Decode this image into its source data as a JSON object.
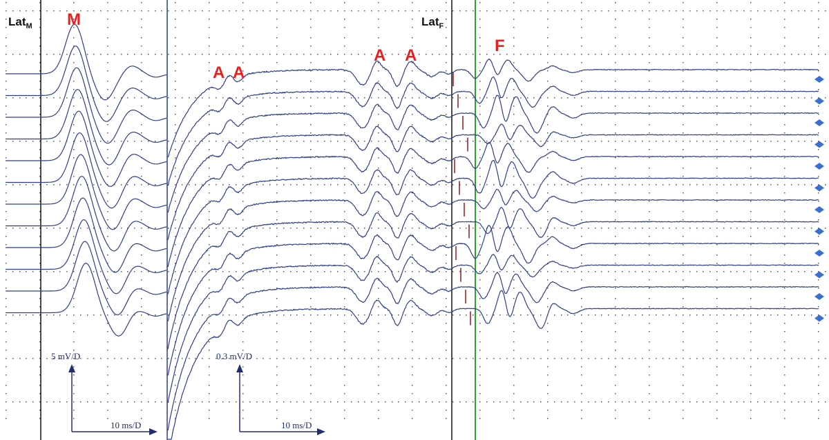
{
  "labels": {
    "lat_m": {
      "main": "Lat",
      "sub": "M"
    },
    "lat_f": {
      "main": "Lat",
      "sub": "F"
    },
    "peaks": [
      "M",
      "A",
      "A",
      "A",
      "A",
      "F"
    ]
  },
  "scale_bars": [
    {
      "vertical": "5 mV/D",
      "horizontal": "10 ms/D"
    },
    {
      "vertical": "0.3 mV/D",
      "horizontal": "10 ms/D"
    }
  ]
}
